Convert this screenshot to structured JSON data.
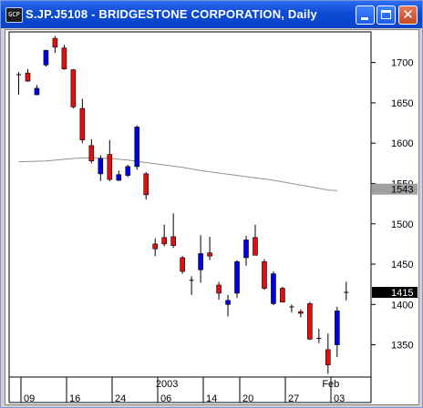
{
  "window": {
    "title": "S.JP.J5108 - BRIDGESTONE CORPORATION, Daily",
    "icon_label": "GCP",
    "minimize_icon": "minimize-icon",
    "maximize_icon": "maximize-icon",
    "close_icon": "close-icon",
    "close_glyph": "✕"
  },
  "chart_data": {
    "type": "candlestick",
    "title": "S.JP.J5108 - BRIDGESTONE CORPORATION, Daily",
    "ylim": [
      1310,
      1738
    ],
    "yticks": [
      1350,
      1400,
      1450,
      1500,
      1550,
      1600,
      1650,
      1700
    ],
    "x_tick_labels": [
      "09",
      "16",
      "24",
      "06",
      "14",
      "20",
      "27",
      "03"
    ],
    "x_tick_index": [
      1,
      6,
      11,
      16,
      21,
      25,
      30,
      35
    ],
    "period_labels": [
      {
        "text": "2003",
        "index": 17
      },
      {
        "text": "Feb",
        "index": 35
      }
    ],
    "up_color": "#0000dd",
    "down_color": "#dd1111",
    "ma_color": "#909090",
    "price_label": {
      "value": "1415",
      "y": 1415
    },
    "ma_label": {
      "value": "1543",
      "y": 1543
    },
    "candles": [
      {
        "o": 1685,
        "h": 1688,
        "l": 1660,
        "c": 1685
      },
      {
        "o": 1687,
        "h": 1692,
        "l": 1676,
        "c": 1677
      },
      {
        "o": 1660,
        "h": 1672,
        "l": 1660,
        "c": 1668
      },
      {
        "o": 1697,
        "h": 1716,
        "l": 1695,
        "c": 1715
      },
      {
        "o": 1730,
        "h": 1733,
        "l": 1712,
        "c": 1719
      },
      {
        "o": 1718,
        "h": 1722,
        "l": 1691,
        "c": 1692
      },
      {
        "o": 1691,
        "h": 1692,
        "l": 1643,
        "c": 1645
      },
      {
        "o": 1643,
        "h": 1655,
        "l": 1600,
        "c": 1604
      },
      {
        "o": 1597,
        "h": 1605,
        "l": 1575,
        "c": 1578
      },
      {
        "o": 1562,
        "h": 1585,
        "l": 1553,
        "c": 1581
      },
      {
        "o": 1586,
        "h": 1604,
        "l": 1553,
        "c": 1555
      },
      {
        "o": 1554,
        "h": 1566,
        "l": 1553,
        "c": 1561
      },
      {
        "o": 1560,
        "h": 1573,
        "l": 1558,
        "c": 1571
      },
      {
        "o": 1571,
        "h": 1622,
        "l": 1567,
        "c": 1620
      },
      {
        "o": 1562,
        "h": 1564,
        "l": 1530,
        "c": 1536
      },
      {
        "o": 1475,
        "h": 1482,
        "l": 1460,
        "c": 1469
      },
      {
        "o": 1483,
        "h": 1499,
        "l": 1472,
        "c": 1475
      },
      {
        "o": 1484,
        "h": 1513,
        "l": 1470,
        "c": 1473
      },
      {
        "o": 1458,
        "h": 1460,
        "l": 1438,
        "c": 1441
      },
      {
        "o": 1430,
        "h": 1435,
        "l": 1412,
        "c": 1430
      },
      {
        "o": 1443,
        "h": 1486,
        "l": 1427,
        "c": 1463
      },
      {
        "o": 1464,
        "h": 1484,
        "l": 1455,
        "c": 1460
      },
      {
        "o": 1424,
        "h": 1428,
        "l": 1406,
        "c": 1414
      },
      {
        "o": 1400,
        "h": 1412,
        "l": 1385,
        "c": 1405
      },
      {
        "o": 1414,
        "h": 1455,
        "l": 1408,
        "c": 1453
      },
      {
        "o": 1458,
        "h": 1485,
        "l": 1448,
        "c": 1480
      },
      {
        "o": 1483,
        "h": 1499,
        "l": 1461,
        "c": 1461
      },
      {
        "o": 1453,
        "h": 1456,
        "l": 1418,
        "c": 1420
      },
      {
        "o": 1401,
        "h": 1441,
        "l": 1399,
        "c": 1438
      },
      {
        "o": 1420,
        "h": 1422,
        "l": 1403,
        "c": 1403
      },
      {
        "o": 1397,
        "h": 1400,
        "l": 1390,
        "c": 1397
      },
      {
        "o": 1391,
        "h": 1394,
        "l": 1384,
        "c": 1389
      },
      {
        "o": 1401,
        "h": 1403,
        "l": 1356,
        "c": 1357
      },
      {
        "o": 1358,
        "h": 1370,
        "l": 1352,
        "c": 1358
      },
      {
        "o": 1344,
        "h": 1364,
        "l": 1314,
        "c": 1325
      },
      {
        "o": 1350,
        "h": 1397,
        "l": 1335,
        "c": 1392
      },
      {
        "o": 1415,
        "h": 1428,
        "l": 1405,
        "c": 1415
      }
    ],
    "moving_average": [
      {
        "i": 0,
        "v": 1577
      },
      {
        "i": 3,
        "v": 1578
      },
      {
        "i": 6,
        "v": 1581
      },
      {
        "i": 8,
        "v": 1582
      },
      {
        "i": 10,
        "v": 1581
      },
      {
        "i": 12,
        "v": 1579
      },
      {
        "i": 14,
        "v": 1576
      },
      {
        "i": 16,
        "v": 1573
      },
      {
        "i": 18,
        "v": 1570
      },
      {
        "i": 20,
        "v": 1566
      },
      {
        "i": 22,
        "v": 1563
      },
      {
        "i": 24,
        "v": 1560
      },
      {
        "i": 26,
        "v": 1557
      },
      {
        "i": 28,
        "v": 1554
      },
      {
        "i": 30,
        "v": 1550
      },
      {
        "i": 32,
        "v": 1546
      },
      {
        "i": 34,
        "v": 1542
      },
      {
        "i": 35,
        "v": 1541
      }
    ]
  }
}
